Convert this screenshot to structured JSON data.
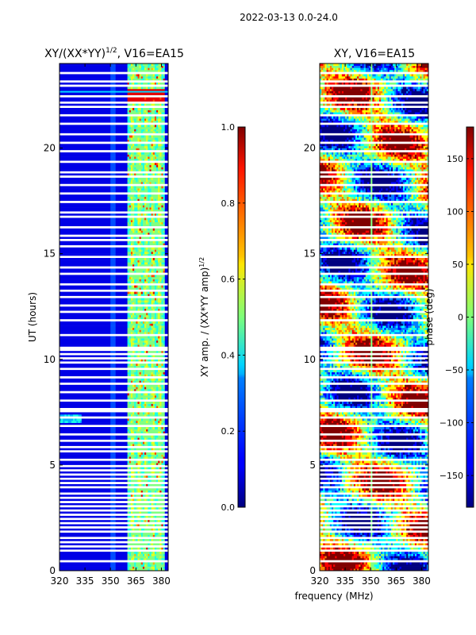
{
  "figure": {
    "suptitle": "2022-03-13 0.0-24.0"
  },
  "chart_data": [
    {
      "type": "heatmap",
      "title_main": "XY/(XX*YY)",
      "title_exp": "1/2",
      "title_suffix": ", V16=EA15",
      "xlabel": "",
      "ylabel": "UT (hours)",
      "xlim": [
        320,
        384
      ],
      "ylim": [
        0,
        24
      ],
      "xticks": [
        "320",
        "335",
        "350",
        "365",
        "380"
      ],
      "xtick_values": [
        320,
        335,
        350,
        365,
        380
      ],
      "yticks": [
        "0",
        "5",
        "10",
        "15",
        "20"
      ],
      "ytick_values": [
        0,
        5,
        10,
        15,
        20
      ],
      "colorbar": {
        "label_main": "XY amp. / (XX*YY amp)",
        "label_exp": "1/2",
        "range": [
          0.0,
          1.0
        ],
        "ticks": [
          "0.0",
          "0.2",
          "0.4",
          "0.6",
          "0.8",
          "1.0"
        ],
        "tick_values": [
          0.0,
          0.2,
          0.4,
          0.6,
          0.8,
          1.0
        ]
      }
    },
    {
      "type": "heatmap",
      "title_main": "XY, V16=EA15",
      "title_exp": "",
      "title_suffix": "",
      "xlabel": "frequency (MHz)",
      "ylabel": "",
      "xlim": [
        320,
        384
      ],
      "ylim": [
        0,
        24
      ],
      "xticks": [
        "320",
        "335",
        "350",
        "365",
        "380"
      ],
      "xtick_values": [
        320,
        335,
        350,
        365,
        380
      ],
      "yticks": [
        "0",
        "5",
        "10",
        "15",
        "20"
      ],
      "ytick_values": [
        0,
        5,
        10,
        15,
        20
      ],
      "colorbar": {
        "label_main": "phase (deg)",
        "label_exp": "",
        "range": [
          -180,
          180
        ],
        "ticks": [
          "−150",
          "−100",
          "−50",
          "0",
          "50",
          "100",
          "150"
        ],
        "tick_values": [
          -150,
          -100,
          -50,
          0,
          50,
          100,
          150
        ]
      }
    }
  ]
}
